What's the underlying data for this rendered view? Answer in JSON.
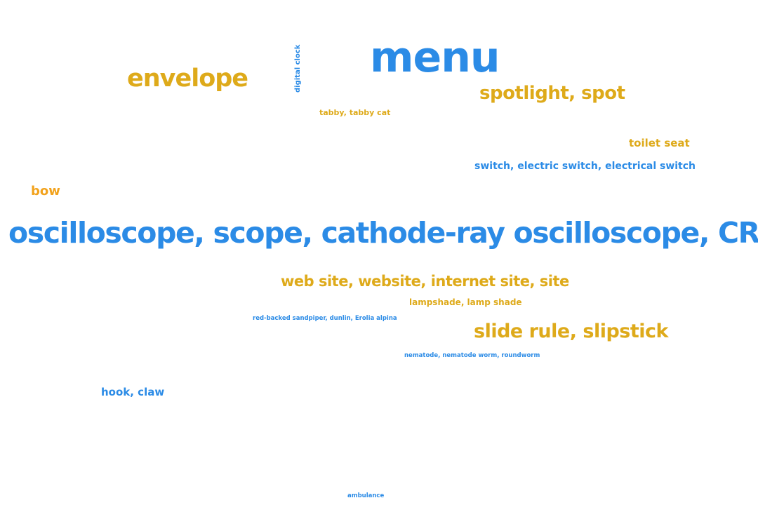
{
  "word_cloud": {
    "words": [
      {
        "id": "menu",
        "text": "menu",
        "color": "#2b8be6"
      },
      {
        "id": "envelope",
        "text": "envelope",
        "color": "#deaa1a"
      },
      {
        "id": "digital_clock",
        "text": "digital clock",
        "color": "#2b8be6"
      },
      {
        "id": "spotlight",
        "text": "spotlight, spot",
        "color": "#deaa1a"
      },
      {
        "id": "tabby",
        "text": "tabby, tabby cat",
        "color": "#deaa1a"
      },
      {
        "id": "toilet_seat",
        "text": "toilet seat",
        "color": "#deaa1a"
      },
      {
        "id": "switch",
        "text": "switch, electric switch, electrical switch",
        "color": "#2b8be6"
      },
      {
        "id": "bow",
        "text": "bow",
        "color": "#f2a21c"
      },
      {
        "id": "oscilloscope",
        "text": "oscilloscope, scope, cathode-ray oscilloscope, CRO",
        "color": "#2b8be6"
      },
      {
        "id": "website",
        "text": "web site, website, internet site, site",
        "color": "#deaa1a"
      },
      {
        "id": "lampshade",
        "text": "lampshade, lamp shade",
        "color": "#deaa1a"
      },
      {
        "id": "sandpiper",
        "text": "red-backed sandpiper, dunlin, Erolia alpina",
        "color": "#2b8be6"
      },
      {
        "id": "slide_rule",
        "text": "slide rule, slipstick",
        "color": "#deaa1a"
      },
      {
        "id": "nematode",
        "text": "nematode, nematode worm, roundworm",
        "color": "#2b8be6"
      },
      {
        "id": "hook",
        "text": "hook, claw",
        "color": "#2b8be6"
      },
      {
        "id": "ambulance",
        "text": "ambulance",
        "color": "#2b8be6"
      }
    ]
  }
}
